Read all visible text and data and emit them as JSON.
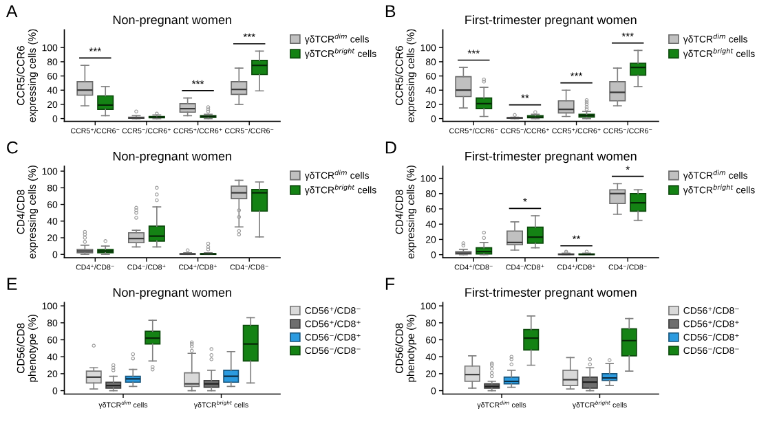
{
  "chart_data": [
    {
      "type": "box",
      "title": "Non-pregnant women",
      "ylabel": "CCR5/CCR6\nexpressing cells (%)",
      "categories": [
        "CCR5⁺/CCR6⁻",
        "CCR5⁻/CCR6⁺",
        "CCR5⁺/CCR6⁺",
        "CCR5⁻/CCR6⁻"
      ],
      "ylim": [
        -4,
        125
      ],
      "yticks": [
        0,
        20,
        40,
        60,
        80,
        100
      ],
      "legend": "right",
      "grid": false,
      "series": [
        {
          "name": "γδTCR$^{dim}$ cells",
          "color": "#c0c0c0",
          "boxes": [
            {
              "low": 18,
              "q1": 33,
              "median": 40,
              "q3": 52,
              "high": 75
            },
            {
              "low": 0,
              "q1": 0.5,
              "median": 1,
              "q3": 2,
              "high": 4,
              "outliers": [
                10
              ]
            },
            {
              "low": 4,
              "q1": 9,
              "median": 14,
              "q3": 21,
              "high": 29
            },
            {
              "low": 20,
              "q1": 34,
              "median": 41,
              "q3": 52,
              "high": 71
            }
          ]
        },
        {
          "name": "γδTCR$^{bright}$ cells",
          "color": "#148214",
          "boxes": [
            {
              "low": 4,
              "q1": 13,
              "median": 19,
              "q3": 32,
              "high": 45
            },
            {
              "low": 0,
              "q1": 1,
              "median": 2,
              "q3": 3,
              "high": 5,
              "outliers": [
                7
              ]
            },
            {
              "low": 0,
              "q1": 1.5,
              "median": 3,
              "q3": 4,
              "high": 6,
              "outliers": [
                10,
                13,
                16
              ]
            },
            {
              "low": 39,
              "q1": 62,
              "median": 75,
              "q3": 82,
              "high": 95
            }
          ]
        }
      ],
      "annotations": [
        "A",
        {
          "text": "***",
          "x": "CCR5⁺/CCR6⁻",
          "y": 75
        },
        {
          "text": "***",
          "x": "CCR5⁺/CCR6⁺",
          "y": 29
        },
        {
          "text": "***",
          "x": "CCR5⁻/CCR6⁻",
          "y": 95
        }
      ]
    },
    {
      "type": "box",
      "title": "First-trimester pregnant women",
      "ylabel": "CCR5/CCR6\nexpressing cells (%)",
      "categories": [
        "CCR5⁺/CCR6⁻",
        "CCR5⁻/CCR6⁺",
        "CCR5⁺/CCR6⁺",
        "CCR5⁻/CCR6⁻"
      ],
      "ylim": [
        -4,
        125
      ],
      "yticks": [
        0,
        20,
        40,
        60,
        80,
        100
      ],
      "legend": "right",
      "grid": false,
      "series": [
        {
          "name": "γδTCR$^{dim}$ cells",
          "color": "#c0c0c0",
          "boxes": [
            {
              "low": 15,
              "q1": 31,
              "median": 40,
              "q3": 59,
              "high": 72
            },
            {
              "low": 0,
              "q1": 0.5,
              "median": 1,
              "q3": 1.5,
              "high": 2,
              "outliers": [
                5
              ]
            },
            {
              "low": 3,
              "q1": 8,
              "median": 13,
              "q3": 25,
              "high": 40
            },
            {
              "low": 18,
              "q1": 25,
              "median": 37,
              "q3": 52,
              "high": 71
            }
          ]
        },
        {
          "name": "γδTCR$^{bright}$ cells",
          "color": "#148214",
          "boxes": [
            {
              "low": 3,
              "q1": 14,
              "median": 21,
              "q3": 29,
              "high": 44,
              "outliers": [
                52,
                55
              ]
            },
            {
              "low": 0,
              "q1": 1,
              "median": 2,
              "q3": 4,
              "high": 6,
              "outliers": [
                9
              ]
            },
            {
              "low": 0,
              "q1": 2,
              "median": 4,
              "q3": 6,
              "high": 10,
              "outliers": [
                13,
                16,
                20,
                23,
                26
              ]
            },
            {
              "low": 45,
              "q1": 61,
              "median": 72,
              "q3": 78,
              "high": 96
            }
          ]
        }
      ],
      "annotations": [
        "B",
        {
          "text": "***",
          "x": "CCR5⁺/CCR6⁻",
          "y": 72
        },
        {
          "text": "**",
          "x": "CCR5⁻/CCR6⁺",
          "y": 9
        },
        {
          "text": "***",
          "x": "CCR5⁺/CCR6⁺",
          "y": 40
        },
        {
          "text": "***",
          "x": "CCR5⁻/CCR6⁻",
          "y": 96
        }
      ]
    },
    {
      "type": "box",
      "title": "Non-pregnant women",
      "ylabel": "CD4/CD8\nexpressing cells (%)",
      "categories": [
        "CD4⁺/CD8⁻",
        "CD4⁻/CD8⁺",
        "CD4⁺/CD8⁺",
        "CD4⁻/CD8⁻"
      ],
      "ylim": [
        -4,
        106
      ],
      "yticks": [
        0,
        20,
        40,
        60,
        80,
        100
      ],
      "legend": "right",
      "grid": false,
      "series": [
        {
          "name": "γδTCR$^{dim}$ cells",
          "color": "#c0c0c0",
          "boxes": [
            {
              "low": 0,
              "q1": 2,
              "median": 4,
              "q3": 6,
              "high": 11,
              "outliers": [
                15,
                20,
                24,
                27
              ]
            },
            {
              "low": 9,
              "q1": 14,
              "median": 19,
              "q3": 26,
              "high": 29,
              "outliers": [
                44,
                50,
                53,
                56
              ]
            },
            {
              "low": 0,
              "q1": 0,
              "median": 0.5,
              "q3": 1,
              "high": 2,
              "outliers": [
                5
              ]
            },
            {
              "low": 33,
              "q1": 67,
              "median": 74,
              "q3": 82,
              "high": 89,
              "outliers": [
                24,
                28,
                45,
                53
              ]
            }
          ]
        },
        {
          "name": "γδTCR$^{bright}$ cells",
          "color": "#148214",
          "boxes": [
            {
              "low": 0,
              "q1": 2,
              "median": 4,
              "q3": 6,
              "high": 10,
              "outliers": [
                16
              ]
            },
            {
              "low": 9,
              "q1": 16,
              "median": 22,
              "q3": 34,
              "high": 57,
              "outliers": [
                65,
                72,
                80
              ]
            },
            {
              "low": 0,
              "q1": 0,
              "median": 0.5,
              "q3": 1,
              "high": 2,
              "outliers": [
                6,
                9,
                13
              ]
            },
            {
              "low": 21,
              "q1": 52,
              "median": 74,
              "q3": 78,
              "high": 87
            }
          ]
        }
      ],
      "annotations": [
        "C"
      ]
    },
    {
      "type": "box",
      "title": "First-trimester pregnant women",
      "ylabel": "CD4/CD8\nexpressing cells (%)",
      "categories": [
        "CD4⁺/CD8⁻",
        "CD4⁻/CD8⁺",
        "CD4⁺/CD8⁺",
        "CD4⁻/CD8⁻"
      ],
      "ylim": [
        -4,
        116
      ],
      "yticks": [
        0,
        20,
        40,
        60,
        80,
        100
      ],
      "legend": "right",
      "grid": false,
      "series": [
        {
          "name": "γδTCR$^{dim}$ cells",
          "color": "#c0c0c0",
          "boxes": [
            {
              "low": 0,
              "q1": 1,
              "median": 2,
              "q3": 4,
              "high": 7,
              "outliers": [
                12,
                15
              ]
            },
            {
              "low": 6,
              "q1": 13,
              "median": 16,
              "q3": 31,
              "high": 43
            },
            {
              "low": 0,
              "q1": 0,
              "median": 0.5,
              "q3": 1,
              "high": 2,
              "outliers": [
                3,
                4
              ]
            },
            {
              "low": 53,
              "q1": 67,
              "median": 80,
              "q3": 85,
              "high": 93
            }
          ]
        },
        {
          "name": "γδTCR$^{bright}$ cells",
          "color": "#148214",
          "boxes": [
            {
              "low": 0,
              "q1": 1,
              "median": 4,
              "q3": 9,
              "high": 16,
              "outliers": [
                22,
                29
              ]
            },
            {
              "low": 9,
              "q1": 15,
              "median": 23,
              "q3": 36,
              "high": 51
            },
            {
              "low": 0,
              "q1": 0,
              "median": 0.5,
              "q3": 1,
              "high": 2,
              "outliers": [
                4
              ]
            },
            {
              "low": 45,
              "q1": 57,
              "median": 68,
              "q3": 80,
              "high": 85
            }
          ]
        }
      ],
      "annotations": [
        "D",
        {
          "text": "*",
          "x": "CD4⁻/CD8⁺",
          "y": 51
        },
        {
          "text": "**",
          "x": "CD4⁺/CD8⁺",
          "y": 2
        },
        {
          "text": "*",
          "x": "CD4⁻/CD8⁻",
          "y": 93
        }
      ]
    },
    {
      "type": "box",
      "title": "Non-pregnant women",
      "ylabel": "CD56/CD8\nphenotype (%)",
      "categories": [
        "γδTCR$^{dim}$ cells",
        "γδTCR$^{bright}$ cells"
      ],
      "ylim": [
        -4,
        104
      ],
      "yticks": [
        0,
        20,
        40,
        60,
        80,
        100
      ],
      "legend": "right",
      "grid": false,
      "series": [
        {
          "name": "CD56⁺/CD8⁻",
          "color": "#d9d9d9",
          "boxes": [
            {
              "low": 2,
              "q1": 9,
              "median": 16,
              "q3": 23,
              "high": 27,
              "outliers": [
                53
              ]
            },
            {
              "low": 0,
              "q1": 5,
              "median": 8,
              "q3": 21,
              "high": 44,
              "outliers": [
                47,
                52,
                55,
                57
              ]
            }
          ]
        },
        {
          "name": "CD56⁺/CD8⁺",
          "color": "#6e6e6e",
          "boxes": [
            {
              "low": 0,
              "q1": 3,
              "median": 6,
              "q3": 10,
              "high": 17,
              "outliers": [
                24,
                27,
                30
              ]
            },
            {
              "low": 0,
              "q1": 4,
              "median": 8,
              "q3": 12,
              "high": 24,
              "outliers": [
                37,
                42,
                49
              ]
            }
          ]
        },
        {
          "name": "CD56⁻/CD8⁺",
          "color": "#2b9be0",
          "boxes": [
            {
              "low": 5,
              "q1": 10,
              "median": 14,
              "q3": 17,
              "high": 25,
              "outliers": [
                38,
                43
              ]
            },
            {
              "low": 5,
              "q1": 10,
              "median": 17,
              "q3": 24,
              "high": 46
            }
          ]
        },
        {
          "name": "CD56⁻/CD8⁻",
          "color": "#148214",
          "boxes": [
            {
              "low": 35,
              "q1": 55,
              "median": 62,
              "q3": 70,
              "high": 83,
              "outliers": [
                25,
                28
              ]
            },
            {
              "low": 9,
              "q1": 35,
              "median": 55,
              "q3": 77,
              "high": 86
            }
          ]
        }
      ],
      "annotations": [
        "E"
      ]
    },
    {
      "type": "box",
      "title": "First-trimester pregnant women",
      "ylabel": "CD56/CD8\nphenotype (%)",
      "categories": [
        "γδTCR$^{dim}$ cells",
        "γδTCR$^{bright}$ cells"
      ],
      "ylim": [
        -4,
        104
      ],
      "yticks": [
        0,
        20,
        40,
        60,
        80,
        100
      ],
      "legend": "right",
      "grid": false,
      "series": [
        {
          "name": "CD56⁺/CD8⁻",
          "color": "#d9d9d9",
          "boxes": [
            {
              "low": 3,
              "q1": 11,
              "median": 19,
              "q3": 29,
              "high": 41
            },
            {
              "low": 2,
              "q1": 6,
              "median": 13,
              "q3": 24,
              "high": 39
            }
          ]
        },
        {
          "name": "CD56⁺/CD8⁺",
          "color": "#6e6e6e",
          "boxes": [
            {
              "low": 0,
              "q1": 3,
              "median": 5,
              "q3": 8,
              "high": 11,
              "outliers": [
                17,
                21,
                26,
                30,
                32
              ]
            },
            {
              "low": 0,
              "q1": 3,
              "median": 10,
              "q3": 16,
              "high": 27,
              "outliers": [
                31,
                37
              ]
            }
          ]
        },
        {
          "name": "CD56⁻/CD8⁺",
          "color": "#2b9be0",
          "boxes": [
            {
              "low": 4,
              "q1": 8,
              "median": 11,
              "q3": 16,
              "high": 24,
              "outliers": [
                31,
                37,
                40
              ]
            },
            {
              "low": 6,
              "q1": 12,
              "median": 15,
              "q3": 20,
              "high": 32,
              "outliers": [
                36
              ]
            }
          ]
        },
        {
          "name": "CD56⁻/CD8⁻",
          "color": "#148214",
          "boxes": [
            {
              "low": 30,
              "q1": 48,
              "median": 62,
              "q3": 72,
              "high": 88
            },
            {
              "low": 23,
              "q1": 41,
              "median": 59,
              "q3": 73,
              "high": 85
            }
          ]
        }
      ],
      "annotations": [
        "F"
      ]
    }
  ]
}
